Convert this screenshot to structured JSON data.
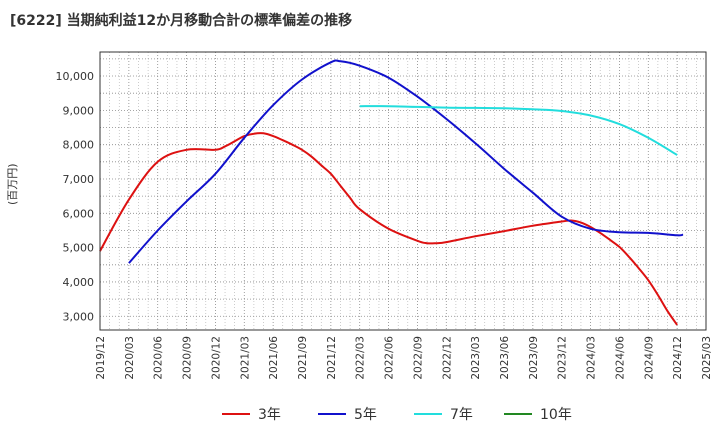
{
  "title": "[6222]  当期純利益12か月移動合計の標準偏差の推移",
  "ylabel": "(百万円)",
  "chart_data": {
    "type": "line",
    "title": "[6222]  当期純利益12か月移動合計の標準偏差の推移",
    "ylabel": "(百万円)",
    "xlabel": "",
    "ylim": [
      2600,
      10700
    ],
    "y_ticks": [
      3000,
      4000,
      5000,
      6000,
      7000,
      8000,
      9000,
      10000
    ],
    "y_tick_labels": [
      "3,000",
      "4,000",
      "5,000",
      "6,000",
      "7,000",
      "8,000",
      "9,000",
      "10,000"
    ],
    "x_tick_labels": [
      "2019/12",
      "2020/03",
      "2020/06",
      "2020/09",
      "2020/12",
      "2021/03",
      "2021/06",
      "2021/09",
      "2021/12",
      "2022/03",
      "2022/06",
      "2022/09",
      "2022/12",
      "2023/03",
      "2023/06",
      "2023/09",
      "2023/12",
      "2024/03",
      "2024/06",
      "2024/09",
      "2024/12",
      "2025/03"
    ],
    "grid": true,
    "legend_position": "bottom",
    "series": [
      {
        "name": "3年",
        "color": "#dd1111",
        "x": [
          "2019/12",
          "2020/03",
          "2020/06",
          "2020/09",
          "2020/12",
          "2021/01",
          "2021/02",
          "2021/03",
          "2021/04",
          "2021/05",
          "2021/06",
          "2021/07",
          "2021/08",
          "2021/09",
          "2021/10",
          "2021/11",
          "2021/12",
          "2022/01",
          "2022/02",
          "2022/03",
          "2022/06",
          "2022/09",
          "2022/10",
          "2022/11",
          "2022/12",
          "2023/03",
          "2023/06",
          "2023/09",
          "2023/12",
          "2024/01",
          "2024/02",
          "2024/03",
          "2024/04",
          "2024/05",
          "2024/06",
          "2024/07",
          "2024/08",
          "2024/09",
          "2024/10",
          "2024/11",
          "2024/12"
        ],
        "values": [
          4900,
          6400,
          7500,
          7850,
          7850,
          7950,
          8100,
          8250,
          8320,
          8330,
          8250,
          8130,
          8000,
          7850,
          7650,
          7400,
          7150,
          6800,
          6450,
          6120,
          5550,
          5200,
          5130,
          5130,
          5160,
          5330,
          5480,
          5640,
          5760,
          5790,
          5730,
          5600,
          5430,
          5230,
          5020,
          4730,
          4400,
          4050,
          3620,
          3150,
          2750
        ]
      },
      {
        "name": "5年",
        "color": "#1111cc",
        "x": [
          "2020/03",
          "2020/06",
          "2020/09",
          "2020/12",
          "2021/03",
          "2021/06",
          "2021/09",
          "2021/12",
          "2022/01",
          "2022/03",
          "2022/06",
          "2022/09",
          "2022/12",
          "2023/03",
          "2023/06",
          "2023/09",
          "2023/12",
          "2024/03",
          "2024/06",
          "2024/09",
          "2024/12",
          "2024/12b"
        ],
        "values": [
          4550,
          5500,
          6350,
          7150,
          8200,
          9150,
          9900,
          10400,
          10430,
          10300,
          9950,
          9400,
          8750,
          8050,
          7300,
          6600,
          5900,
          5550,
          5450,
          5430,
          5360,
          5380
        ]
      },
      {
        "name": "7年",
        "color": "#22dddd",
        "x": [
          "2022/03",
          "2022/06",
          "2022/09",
          "2022/12",
          "2023/03",
          "2023/06",
          "2023/09",
          "2023/12",
          "2024/03",
          "2024/06",
          "2024/09",
          "2024/12"
        ],
        "values": [
          9120,
          9120,
          9100,
          9080,
          9070,
          9060,
          9030,
          8980,
          8850,
          8600,
          8200,
          7700
        ]
      },
      {
        "name": "10年",
        "color": "#228822",
        "x": [],
        "values": []
      }
    ]
  }
}
